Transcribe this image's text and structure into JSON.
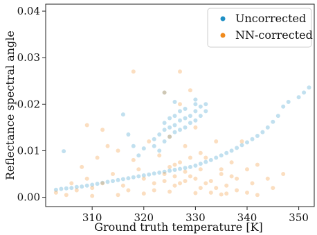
{
  "chart_data": {
    "type": "scatter",
    "xlabel": "Ground truth temperature [K]",
    "ylabel": "Reflectance spectral angle",
    "xlim": [
      301,
      353
    ],
    "ylim": [
      -0.002,
      0.0415
    ],
    "xticks": [
      310,
      320,
      330,
      340,
      350
    ],
    "yticks": [
      0.0,
      0.01,
      0.02,
      0.03,
      0.04
    ],
    "ytick_labels": [
      "0.00",
      "0.01",
      "0.02",
      "0.03",
      "0.04"
    ],
    "grid": false,
    "legend": {
      "placement": "top-right"
    },
    "colors": {
      "uncorrected": "#1f8fc4",
      "nn_corrected": "#f08a1c"
    },
    "series": [
      {
        "name": "Uncorrected",
        "color": "#1f8fc4",
        "points": [
          [
            303,
            0.0016
          ],
          [
            304,
            0.0018
          ],
          [
            305,
            0.0019
          ],
          [
            306,
            0.002
          ],
          [
            307,
            0.0022
          ],
          [
            308,
            0.0023
          ],
          [
            309,
            0.0025
          ],
          [
            310,
            0.0027
          ],
          [
            311,
            0.0029
          ],
          [
            312,
            0.0031
          ],
          [
            313,
            0.0033
          ],
          [
            314,
            0.0035
          ],
          [
            315,
            0.0037
          ],
          [
            316,
            0.0039
          ],
          [
            317,
            0.0041
          ],
          [
            318,
            0.0043
          ],
          [
            319,
            0.0045
          ],
          [
            320,
            0.0047
          ],
          [
            321,
            0.0049
          ],
          [
            322,
            0.0051
          ],
          [
            323,
            0.0053
          ],
          [
            324,
            0.0055
          ],
          [
            325,
            0.0057
          ],
          [
            326,
            0.0059
          ],
          [
            327,
            0.0061
          ],
          [
            328,
            0.0063
          ],
          [
            329,
            0.0065
          ],
          [
            330,
            0.0068
          ],
          [
            331,
            0.0072
          ],
          [
            332,
            0.0076
          ],
          [
            333,
            0.008
          ],
          [
            334,
            0.0085
          ],
          [
            335,
            0.009
          ],
          [
            336,
            0.0095
          ],
          [
            337,
            0.01
          ],
          [
            338,
            0.0106
          ],
          [
            339,
            0.0112
          ],
          [
            340,
            0.0118
          ],
          [
            341,
            0.0125
          ],
          [
            342,
            0.0132
          ],
          [
            343,
            0.014
          ],
          [
            344,
            0.015
          ],
          [
            345,
            0.0162
          ],
          [
            346,
            0.0175
          ],
          [
            347,
            0.0195
          ],
          [
            348,
            0.0205
          ],
          [
            350,
            0.0215
          ],
          [
            351,
            0.0225
          ],
          [
            352,
            0.0236
          ],
          [
            304.5,
            0.0099
          ],
          [
            316,
            0.0178
          ],
          [
            317,
            0.0135
          ],
          [
            318,
            0.011
          ],
          [
            319,
            0.009
          ],
          [
            320,
            0.0105
          ],
          [
            322,
            0.011
          ],
          [
            322,
            0.0125
          ],
          [
            323,
            0.0135
          ],
          [
            323,
            0.01
          ],
          [
            324,
            0.012
          ],
          [
            324,
            0.0145
          ],
          [
            324,
            0.016
          ],
          [
            325,
            0.013
          ],
          [
            325,
            0.015
          ],
          [
            325,
            0.017
          ],
          [
            326,
            0.014
          ],
          [
            326,
            0.0155
          ],
          [
            326,
            0.0175
          ],
          [
            327,
            0.0145
          ],
          [
            327,
            0.0165
          ],
          [
            327,
            0.0185
          ],
          [
            328,
            0.015
          ],
          [
            328,
            0.017
          ],
          [
            328,
            0.019
          ],
          [
            329,
            0.016
          ],
          [
            329,
            0.0175
          ],
          [
            330,
            0.0165
          ],
          [
            330,
            0.0185
          ],
          [
            330,
            0.02
          ],
          [
            331,
            0.0175
          ],
          [
            331,
            0.0195
          ],
          [
            332,
            0.0185
          ],
          [
            332,
            0.02
          ],
          [
            324,
            0.0225
          ],
          [
            326,
            0.0205
          ],
          [
            330,
            0.021
          ]
        ]
      },
      {
        "name": "NN-corrected",
        "color": "#f08a1c",
        "points": [
          [
            303,
            0.001
          ],
          [
            305,
            0.0005
          ],
          [
            306,
            0.003
          ],
          [
            307,
            0.0015
          ],
          [
            308,
            0.0065
          ],
          [
            309,
            0.004
          ],
          [
            310,
            0.002
          ],
          [
            311,
            0.0085
          ],
          [
            312,
            0.003
          ],
          [
            313,
            0.011
          ],
          [
            314,
            0.005
          ],
          [
            315,
            0.01
          ],
          [
            316,
            0.0025
          ],
          [
            317,
            0.0015
          ],
          [
            318,
            0.008
          ],
          [
            319,
            0.006
          ],
          [
            320,
            0.004
          ],
          [
            321,
            0.012
          ],
          [
            322,
            0.003
          ],
          [
            323,
            0.009
          ],
          [
            324,
            0.005
          ],
          [
            325,
            0.013
          ],
          [
            326,
            0.007
          ],
          [
            327,
            0.003
          ],
          [
            328,
            0.011
          ],
          [
            329,
            0.0045
          ],
          [
            330,
            0.015
          ],
          [
            331,
            0.006
          ],
          [
            332,
            0.0085
          ],
          [
            333,
            0.0035
          ],
          [
            334,
            0.012
          ],
          [
            335,
            0.005
          ],
          [
            336,
            0.0025
          ],
          [
            337,
            0.0075
          ],
          [
            338,
            0.004
          ],
          [
            339,
            0.012
          ],
          [
            340,
            0.006
          ],
          [
            341,
            0.003
          ],
          [
            342,
            0.007
          ],
          [
            344,
            0.004
          ],
          [
            345,
            0.002
          ],
          [
            347,
            0.005
          ],
          [
            309,
            0.0155
          ],
          [
            312,
            0.0145
          ],
          [
            318,
            0.027
          ],
          [
            324,
            0.0225
          ],
          [
            327,
            0.027
          ],
          [
            329,
            0.023
          ],
          [
            327,
            0.02
          ],
          [
            315,
            0.0005
          ],
          [
            320,
            0.0008
          ],
          [
            325,
            0.0012
          ],
          [
            330,
            0.0009
          ],
          [
            335,
            0.0006
          ],
          [
            310,
            0.0003
          ],
          [
            322,
            0.0015
          ],
          [
            326,
            0.0025
          ],
          [
            328,
            0.0035
          ],
          [
            331,
            0.002
          ],
          [
            333,
            0.001
          ],
          [
            336,
            0.0008
          ],
          [
            338,
            0.0015
          ],
          [
            340,
            0.001
          ],
          [
            342,
            0.0005
          ],
          [
            324,
            0.0035
          ],
          [
            326,
            0.0045
          ],
          [
            328,
            0.0055
          ],
          [
            330,
            0.004
          ],
          [
            332,
            0.003
          ],
          [
            334,
            0.002
          ],
          [
            325,
            0.0065
          ],
          [
            327,
            0.0075
          ],
          [
            329,
            0.0085
          ],
          [
            331,
            0.0095
          ],
          [
            335,
            0.006
          ],
          [
            337,
            0.0045
          ]
        ]
      }
    ]
  }
}
